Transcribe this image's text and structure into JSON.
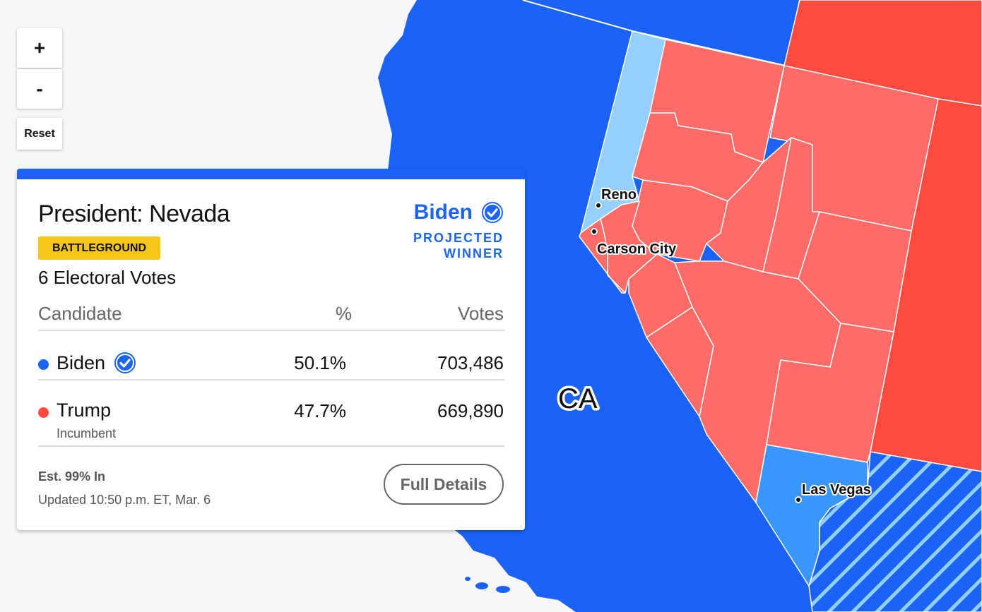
{
  "map": {
    "controls": {
      "zoom_in": "+",
      "zoom_out": "-",
      "reset": "Reset"
    },
    "cities": [
      {
        "name": "Reno",
        "label_key": "reno"
      },
      {
        "name": "Carson City",
        "label_key": "carson"
      },
      {
        "name": "Las Vegas",
        "label_key": "lasvegas"
      }
    ],
    "state_label": "CA",
    "colors": {
      "background": "#f7f7f7",
      "democrat_strong": "#1a63f5",
      "democrat_lean": "#3b96fc",
      "democrat_light": "#93d0fd",
      "republican_strong": "#ff4a40",
      "republican_lean": "#ff6b67",
      "border": "#ffffff"
    }
  },
  "panel": {
    "race_title": "President: Nevada",
    "badge": "BATTLEGROUND",
    "electoral_votes": "6 Electoral Votes",
    "winner": {
      "name": "Biden",
      "tag_line1": "PROJECTED",
      "tag_line2": "WINNER"
    },
    "columns": {
      "candidate": "Candidate",
      "pct": "%",
      "votes": "Votes"
    },
    "candidates": [
      {
        "name": "Biden",
        "pct": "50.1%",
        "votes": "703,486",
        "color": "#1a63f5",
        "winner": true,
        "note": ""
      },
      {
        "name": "Trump",
        "pct": "47.7%",
        "votes": "669,890",
        "color": "#ff4a40",
        "winner": false,
        "note": "Incumbent"
      }
    ],
    "reporting": "Est. 99% In",
    "updated": "Updated 10:50 p.m. ET, Mar. 6",
    "details_button": "Full Details",
    "accent_color": "#1a63f5",
    "badge_color": "#f5c518"
  }
}
